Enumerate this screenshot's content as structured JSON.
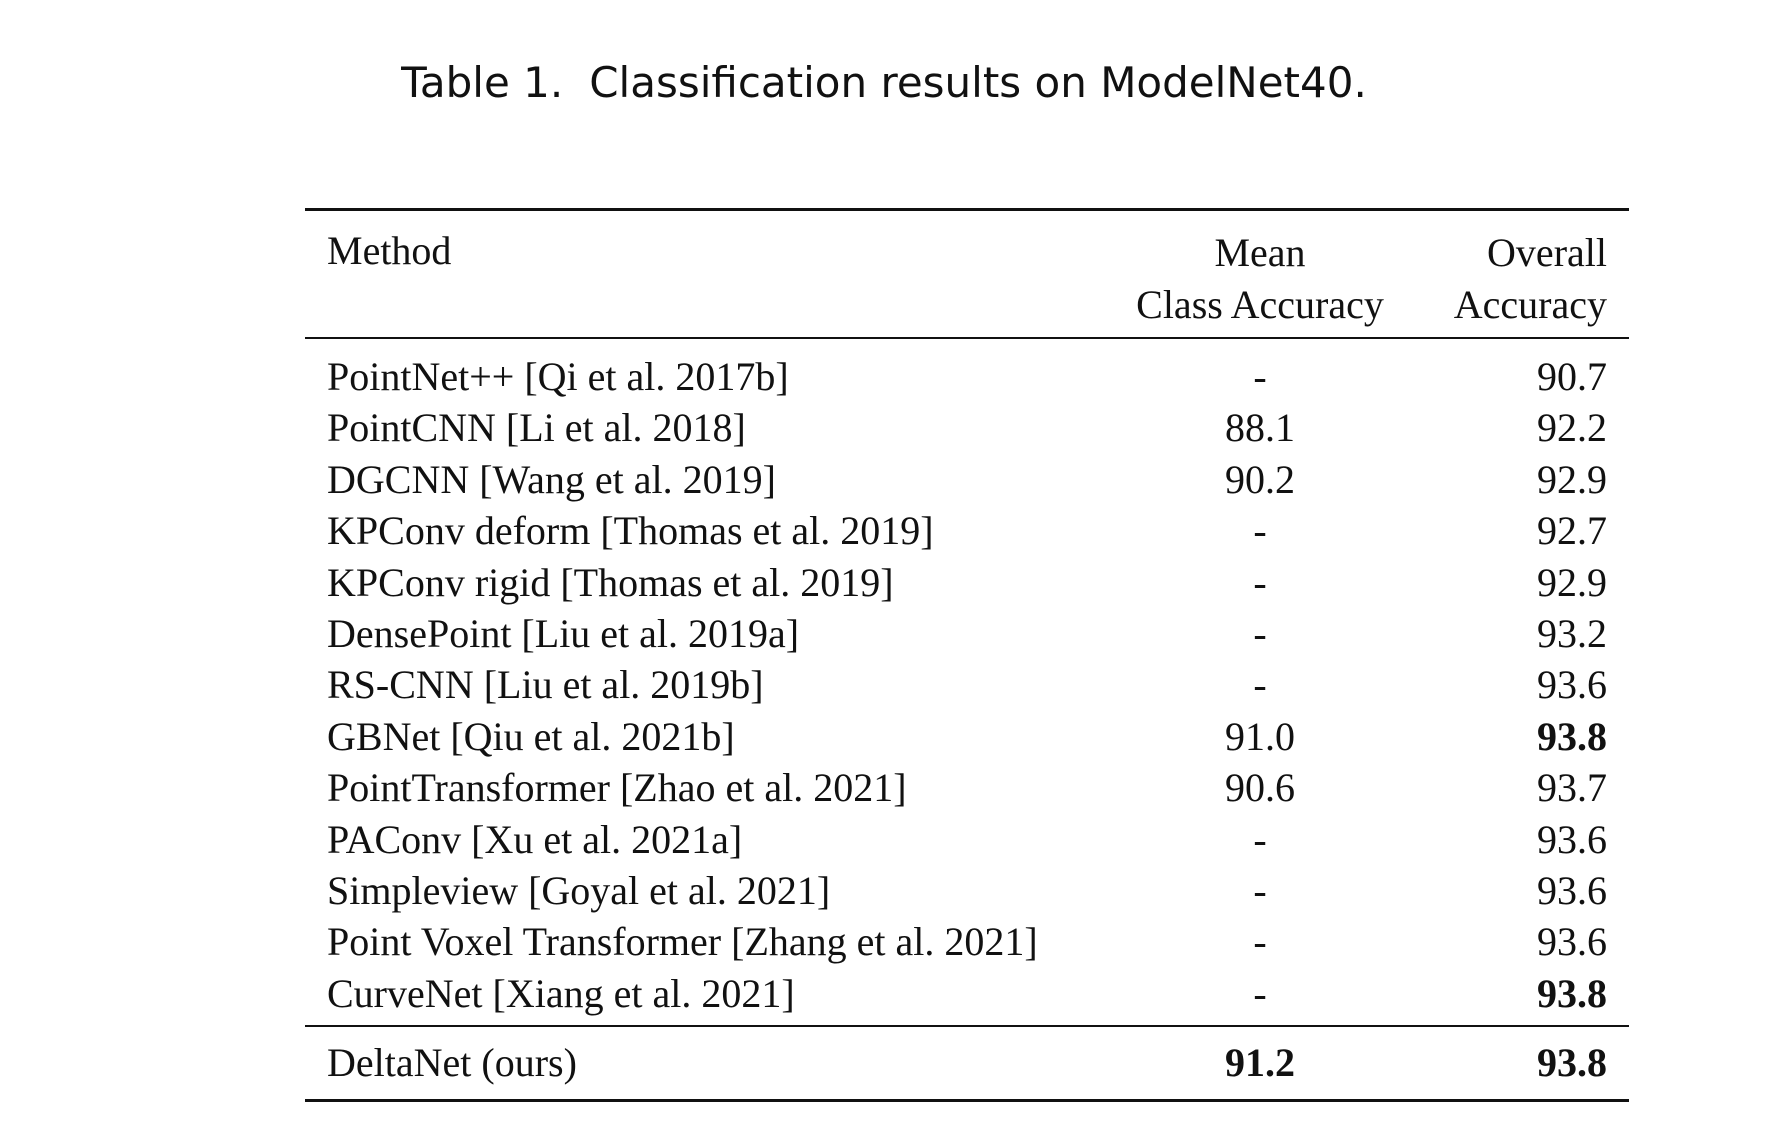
{
  "caption": {
    "label": "Table 1.",
    "text": "Classification results on ModelNet40."
  },
  "table": {
    "headers": {
      "method": "Method",
      "mean_line1": "Mean",
      "mean_line2": "Class Accuracy",
      "overall_line1": "Overall",
      "overall_line2": "Accuracy"
    },
    "rows": [
      {
        "method": "PointNet++ [Qi et al. 2017b]",
        "mean": "-",
        "overall": "90.7",
        "mean_bold": false,
        "overall_bold": false
      },
      {
        "method": "PointCNN [Li et al. 2018]",
        "mean": "88.1",
        "overall": "92.2",
        "mean_bold": false,
        "overall_bold": false
      },
      {
        "method": "DGCNN [Wang et al. 2019]",
        "mean": "90.2",
        "overall": "92.9",
        "mean_bold": false,
        "overall_bold": false
      },
      {
        "method": "KPConv deform [Thomas et al. 2019]",
        "mean": "-",
        "overall": "92.7",
        "mean_bold": false,
        "overall_bold": false
      },
      {
        "method": "KPConv rigid [Thomas et al. 2019]",
        "mean": "-",
        "overall": "92.9",
        "mean_bold": false,
        "overall_bold": false
      },
      {
        "method": "DensePoint [Liu et al. 2019a]",
        "mean": "-",
        "overall": "93.2",
        "mean_bold": false,
        "overall_bold": false
      },
      {
        "method": "RS-CNN [Liu et al. 2019b]",
        "mean": "-",
        "overall": "93.6",
        "mean_bold": false,
        "overall_bold": false
      },
      {
        "method": "GBNet [Qiu et al. 2021b]",
        "mean": "91.0",
        "overall": "93.8",
        "mean_bold": false,
        "overall_bold": true
      },
      {
        "method": "PointTransformer [Zhao et al. 2021]",
        "mean": "90.6",
        "overall": "93.7",
        "mean_bold": false,
        "overall_bold": false
      },
      {
        "method": "PAConv [Xu et al. 2021a]",
        "mean": "-",
        "overall": "93.6",
        "mean_bold": false,
        "overall_bold": false
      },
      {
        "method": "Simpleview [Goyal et al. 2021]",
        "mean": "-",
        "overall": "93.6",
        "mean_bold": false,
        "overall_bold": false
      },
      {
        "method": "Point Voxel Transformer [Zhang et al. 2021]",
        "mean": "-",
        "overall": "93.6",
        "mean_bold": false,
        "overall_bold": false
      },
      {
        "method": "CurveNet [Xiang et al. 2021]",
        "mean": "-",
        "overall": "93.8",
        "mean_bold": false,
        "overall_bold": true
      }
    ],
    "final_row": {
      "method": "DeltaNet (ours)",
      "mean": "91.2",
      "overall": "93.8",
      "mean_bold": true,
      "overall_bold": true
    }
  }
}
